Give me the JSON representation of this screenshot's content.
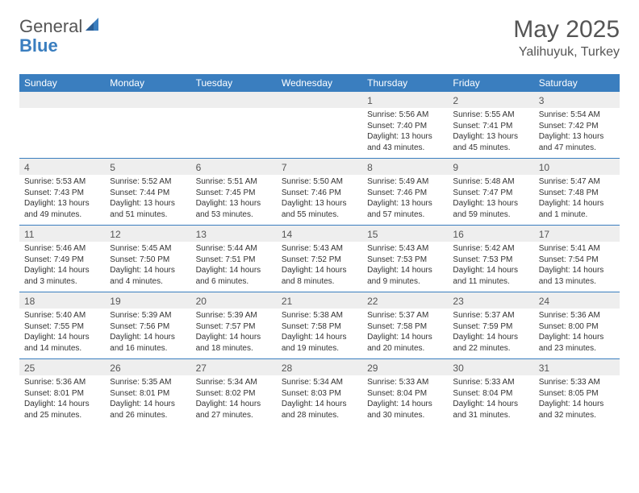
{
  "logo": {
    "line1": "General",
    "line2": "Blue"
  },
  "title": "May 2025",
  "location": "Yalihuyuk, Turkey",
  "colors": {
    "header_bg": "#3a7ebf",
    "header_text": "#ffffff",
    "daynum_bg": "#eeeeee",
    "text": "#333333",
    "title_text": "#555555",
    "divider": "#3a7ebf",
    "page_bg": "#ffffff"
  },
  "day_headers": [
    "Sunday",
    "Monday",
    "Tuesday",
    "Wednesday",
    "Thursday",
    "Friday",
    "Saturday"
  ],
  "weeks": [
    [
      {
        "n": "",
        "sr": "",
        "ss": "",
        "dl": ""
      },
      {
        "n": "",
        "sr": "",
        "ss": "",
        "dl": ""
      },
      {
        "n": "",
        "sr": "",
        "ss": "",
        "dl": ""
      },
      {
        "n": "",
        "sr": "",
        "ss": "",
        "dl": ""
      },
      {
        "n": "1",
        "sr": "Sunrise: 5:56 AM",
        "ss": "Sunset: 7:40 PM",
        "dl": "Daylight: 13 hours and 43 minutes."
      },
      {
        "n": "2",
        "sr": "Sunrise: 5:55 AM",
        "ss": "Sunset: 7:41 PM",
        "dl": "Daylight: 13 hours and 45 minutes."
      },
      {
        "n": "3",
        "sr": "Sunrise: 5:54 AM",
        "ss": "Sunset: 7:42 PM",
        "dl": "Daylight: 13 hours and 47 minutes."
      }
    ],
    [
      {
        "n": "4",
        "sr": "Sunrise: 5:53 AM",
        "ss": "Sunset: 7:43 PM",
        "dl": "Daylight: 13 hours and 49 minutes."
      },
      {
        "n": "5",
        "sr": "Sunrise: 5:52 AM",
        "ss": "Sunset: 7:44 PM",
        "dl": "Daylight: 13 hours and 51 minutes."
      },
      {
        "n": "6",
        "sr": "Sunrise: 5:51 AM",
        "ss": "Sunset: 7:45 PM",
        "dl": "Daylight: 13 hours and 53 minutes."
      },
      {
        "n": "7",
        "sr": "Sunrise: 5:50 AM",
        "ss": "Sunset: 7:46 PM",
        "dl": "Daylight: 13 hours and 55 minutes."
      },
      {
        "n": "8",
        "sr": "Sunrise: 5:49 AM",
        "ss": "Sunset: 7:46 PM",
        "dl": "Daylight: 13 hours and 57 minutes."
      },
      {
        "n": "9",
        "sr": "Sunrise: 5:48 AM",
        "ss": "Sunset: 7:47 PM",
        "dl": "Daylight: 13 hours and 59 minutes."
      },
      {
        "n": "10",
        "sr": "Sunrise: 5:47 AM",
        "ss": "Sunset: 7:48 PM",
        "dl": "Daylight: 14 hours and 1 minute."
      }
    ],
    [
      {
        "n": "11",
        "sr": "Sunrise: 5:46 AM",
        "ss": "Sunset: 7:49 PM",
        "dl": "Daylight: 14 hours and 3 minutes."
      },
      {
        "n": "12",
        "sr": "Sunrise: 5:45 AM",
        "ss": "Sunset: 7:50 PM",
        "dl": "Daylight: 14 hours and 4 minutes."
      },
      {
        "n": "13",
        "sr": "Sunrise: 5:44 AM",
        "ss": "Sunset: 7:51 PM",
        "dl": "Daylight: 14 hours and 6 minutes."
      },
      {
        "n": "14",
        "sr": "Sunrise: 5:43 AM",
        "ss": "Sunset: 7:52 PM",
        "dl": "Daylight: 14 hours and 8 minutes."
      },
      {
        "n": "15",
        "sr": "Sunrise: 5:43 AM",
        "ss": "Sunset: 7:53 PM",
        "dl": "Daylight: 14 hours and 9 minutes."
      },
      {
        "n": "16",
        "sr": "Sunrise: 5:42 AM",
        "ss": "Sunset: 7:53 PM",
        "dl": "Daylight: 14 hours and 11 minutes."
      },
      {
        "n": "17",
        "sr": "Sunrise: 5:41 AM",
        "ss": "Sunset: 7:54 PM",
        "dl": "Daylight: 14 hours and 13 minutes."
      }
    ],
    [
      {
        "n": "18",
        "sr": "Sunrise: 5:40 AM",
        "ss": "Sunset: 7:55 PM",
        "dl": "Daylight: 14 hours and 14 minutes."
      },
      {
        "n": "19",
        "sr": "Sunrise: 5:39 AM",
        "ss": "Sunset: 7:56 PM",
        "dl": "Daylight: 14 hours and 16 minutes."
      },
      {
        "n": "20",
        "sr": "Sunrise: 5:39 AM",
        "ss": "Sunset: 7:57 PM",
        "dl": "Daylight: 14 hours and 18 minutes."
      },
      {
        "n": "21",
        "sr": "Sunrise: 5:38 AM",
        "ss": "Sunset: 7:58 PM",
        "dl": "Daylight: 14 hours and 19 minutes."
      },
      {
        "n": "22",
        "sr": "Sunrise: 5:37 AM",
        "ss": "Sunset: 7:58 PM",
        "dl": "Daylight: 14 hours and 20 minutes."
      },
      {
        "n": "23",
        "sr": "Sunrise: 5:37 AM",
        "ss": "Sunset: 7:59 PM",
        "dl": "Daylight: 14 hours and 22 minutes."
      },
      {
        "n": "24",
        "sr": "Sunrise: 5:36 AM",
        "ss": "Sunset: 8:00 PM",
        "dl": "Daylight: 14 hours and 23 minutes."
      }
    ],
    [
      {
        "n": "25",
        "sr": "Sunrise: 5:36 AM",
        "ss": "Sunset: 8:01 PM",
        "dl": "Daylight: 14 hours and 25 minutes."
      },
      {
        "n": "26",
        "sr": "Sunrise: 5:35 AM",
        "ss": "Sunset: 8:01 PM",
        "dl": "Daylight: 14 hours and 26 minutes."
      },
      {
        "n": "27",
        "sr": "Sunrise: 5:34 AM",
        "ss": "Sunset: 8:02 PM",
        "dl": "Daylight: 14 hours and 27 minutes."
      },
      {
        "n": "28",
        "sr": "Sunrise: 5:34 AM",
        "ss": "Sunset: 8:03 PM",
        "dl": "Daylight: 14 hours and 28 minutes."
      },
      {
        "n": "29",
        "sr": "Sunrise: 5:33 AM",
        "ss": "Sunset: 8:04 PM",
        "dl": "Daylight: 14 hours and 30 minutes."
      },
      {
        "n": "30",
        "sr": "Sunrise: 5:33 AM",
        "ss": "Sunset: 8:04 PM",
        "dl": "Daylight: 14 hours and 31 minutes."
      },
      {
        "n": "31",
        "sr": "Sunrise: 5:33 AM",
        "ss": "Sunset: 8:05 PM",
        "dl": "Daylight: 14 hours and 32 minutes."
      }
    ]
  ]
}
